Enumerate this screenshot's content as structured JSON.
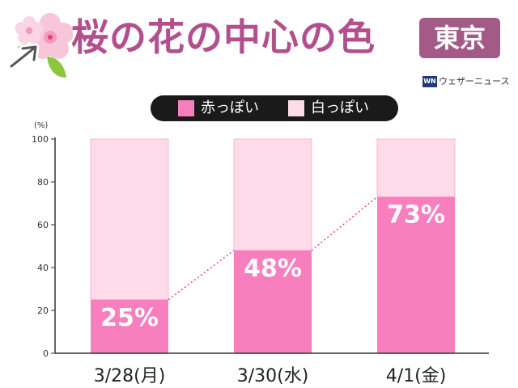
{
  "header": {
    "title": "桜の花の中心の色",
    "region": "東京",
    "brand": "ウェザーニュース",
    "brand_logo": "WN"
  },
  "colors": {
    "title": "#b24f8c",
    "region_bg": "#a35a86",
    "red_series": "#f77fbe",
    "white_series": "#fddbe9",
    "legend_bg": "#1a1a1a"
  },
  "icons": [
    "sakura-flower-icon",
    "leaf-icon",
    "cursor-arrow-icon"
  ],
  "chart_data": {
    "type": "bar",
    "stacked": true,
    "categories": [
      "3/28(月)",
      "3/30(水)",
      "4/1(金)"
    ],
    "series": [
      {
        "name": "赤っぽい",
        "values": [
          25,
          48,
          73
        ],
        "color": "#f77fbe"
      },
      {
        "name": "白っぽい",
        "values": [
          75,
          52,
          27
        ],
        "color": "#fddbe9"
      }
    ],
    "data_labels": [
      "25%",
      "48%",
      "73%"
    ],
    "ylabel": "(%)",
    "ylim": [
      0,
      100
    ],
    "yticks": [
      0,
      20,
      40,
      60,
      80,
      100
    ],
    "trend_line": "dotted",
    "legend_position": "top"
  }
}
